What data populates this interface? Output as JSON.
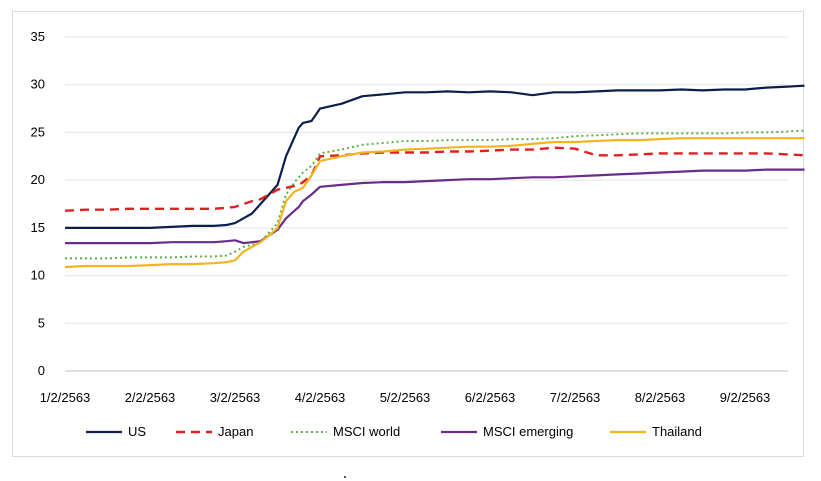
{
  "chart_data": {
    "type": "line",
    "title": "",
    "xlabel": "",
    "ylabel": "",
    "ylim": [
      0,
      35
    ],
    "yticks": [
      "0",
      "5",
      "10",
      "15",
      "20",
      "25",
      "30",
      "35"
    ],
    "xticks": [
      "1/2/2563",
      "2/2/2563",
      "3/2/2563",
      "4/2/2563",
      "5/2/2563",
      "6/2/2563",
      "7/2/2563",
      "8/2/2563",
      "9/2/2563"
    ],
    "x_start": "1/2/2563",
    "x": [
      0,
      0.25,
      0.5,
      0.75,
      1,
      1.25,
      1.5,
      1.75,
      1.9,
      2,
      2.1,
      2.2,
      2.3,
      2.4,
      2.5,
      2.6,
      2.7,
      2.75,
      2.8,
      2.9,
      3,
      3.25,
      3.5,
      3.75,
      4,
      4.25,
      4.5,
      4.75,
      5,
      5.25,
      5.5,
      5.75,
      6,
      6.25,
      6.5,
      6.75,
      7,
      7.25,
      7.5,
      7.75,
      8,
      8.25,
      8.5,
      8.7
    ],
    "grid": true,
    "legend_position": "bottom",
    "series": [
      {
        "name": "US",
        "color": "#0b1f4d",
        "style": "solid",
        "values": [
          15.0,
          15.0,
          15.0,
          15.0,
          15.0,
          15.1,
          15.2,
          15.2,
          15.3,
          15.5,
          16.0,
          16.5,
          17.5,
          18.5,
          19.5,
          22.5,
          24.5,
          25.5,
          26.0,
          26.2,
          27.5,
          28.0,
          28.8,
          29.0,
          29.2,
          29.2,
          29.3,
          29.2,
          29.3,
          29.2,
          28.9,
          29.2,
          29.2,
          29.3,
          29.4,
          29.4,
          29.4,
          29.5,
          29.4,
          29.5,
          29.5,
          29.7,
          29.8,
          29.9
        ]
      },
      {
        "name": "Japan",
        "color": "#e02020",
        "style": "dashed",
        "values": [
          16.8,
          16.9,
          16.9,
          17.0,
          17.0,
          17.0,
          17.0,
          17.0,
          17.1,
          17.2,
          17.5,
          17.8,
          18.0,
          18.5,
          19.0,
          19.2,
          19.4,
          19.5,
          19.8,
          20.5,
          22.5,
          22.6,
          22.8,
          22.9,
          22.9,
          22.9,
          23.0,
          23.0,
          23.1,
          23.2,
          23.2,
          23.4,
          23.3,
          22.6,
          22.6,
          22.7,
          22.8,
          22.8,
          22.8,
          22.8,
          22.8,
          22.8,
          22.7,
          22.6
        ]
      },
      {
        "name": "MSCI world",
        "color": "#5fae4a",
        "style": "dotted",
        "values": [
          11.8,
          11.8,
          11.8,
          11.9,
          11.9,
          11.9,
          12.0,
          12.0,
          12.1,
          12.5,
          13.0,
          13.2,
          13.5,
          14.5,
          15.5,
          18.5,
          19.8,
          20.3,
          20.8,
          21.5,
          22.8,
          23.2,
          23.7,
          23.9,
          24.1,
          24.1,
          24.2,
          24.2,
          24.2,
          24.3,
          24.3,
          24.4,
          24.6,
          24.7,
          24.8,
          24.9,
          24.9,
          24.9,
          24.9,
          24.9,
          25.0,
          25.0,
          25.1,
          25.2
        ]
      },
      {
        "name": "MSCI emerging",
        "color": "#6a2c8c",
        "style": "solid",
        "values": [
          13.4,
          13.4,
          13.4,
          13.4,
          13.4,
          13.5,
          13.5,
          13.5,
          13.6,
          13.7,
          13.4,
          13.5,
          13.6,
          14.2,
          14.8,
          16.0,
          16.8,
          17.2,
          17.8,
          18.5,
          19.3,
          19.5,
          19.7,
          19.8,
          19.8,
          19.9,
          20.0,
          20.1,
          20.1,
          20.2,
          20.3,
          20.3,
          20.4,
          20.5,
          20.6,
          20.7,
          20.8,
          20.9,
          21.0,
          21.0,
          21.0,
          21.1,
          21.1,
          21.1
        ]
      },
      {
        "name": "Thailand",
        "color": "#f2b51f",
        "style": "solid",
        "values": [
          10.9,
          11.0,
          11.0,
          11.0,
          11.1,
          11.2,
          11.2,
          11.3,
          11.4,
          11.6,
          12.5,
          13.0,
          13.5,
          14.2,
          15.0,
          17.8,
          18.8,
          19.0,
          19.2,
          20.5,
          22.0,
          22.5,
          22.9,
          23.0,
          23.2,
          23.3,
          23.4,
          23.5,
          23.5,
          23.6,
          23.8,
          24.0,
          24.0,
          24.1,
          24.2,
          24.2,
          24.3,
          24.4,
          24.4,
          24.4,
          24.4,
          24.4,
          24.4,
          24.4
        ]
      }
    ]
  }
}
